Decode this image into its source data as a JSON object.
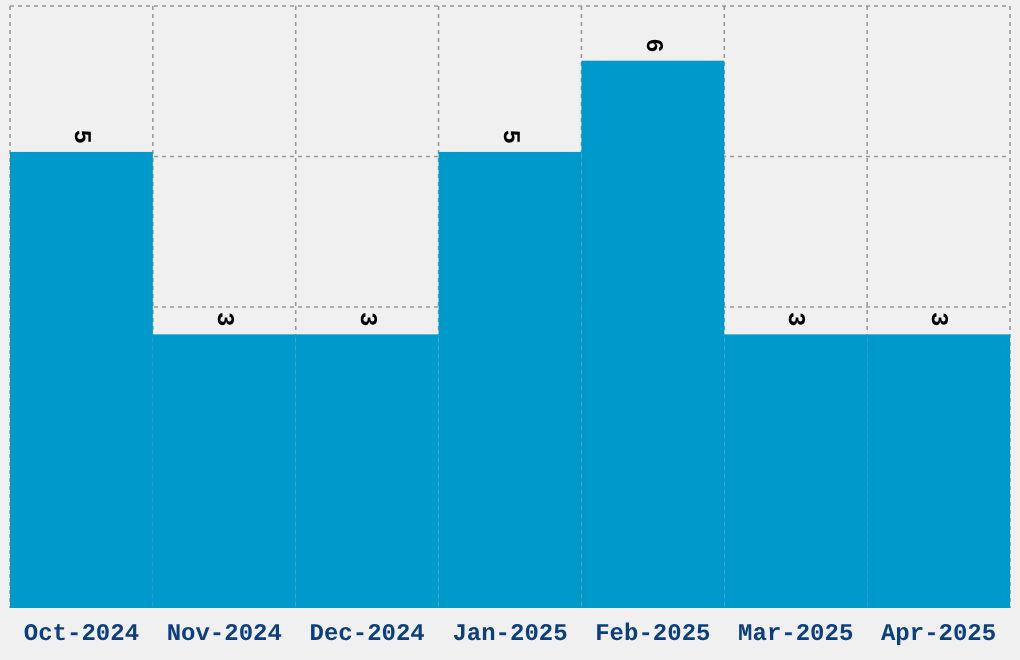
{
  "chart_data": {
    "type": "bar",
    "categories": [
      "Oct-2024",
      "Nov-2024",
      "Dec-2024",
      "Jan-2025",
      "Feb-2025",
      "Mar-2025",
      "Apr-2025"
    ],
    "values": [
      5,
      3,
      3,
      5,
      6,
      3,
      3
    ],
    "color": "#0099cc",
    "ylim": [
      0,
      6.6
    ],
    "grid": true,
    "data_labels": true,
    "tick_labels": "x"
  }
}
